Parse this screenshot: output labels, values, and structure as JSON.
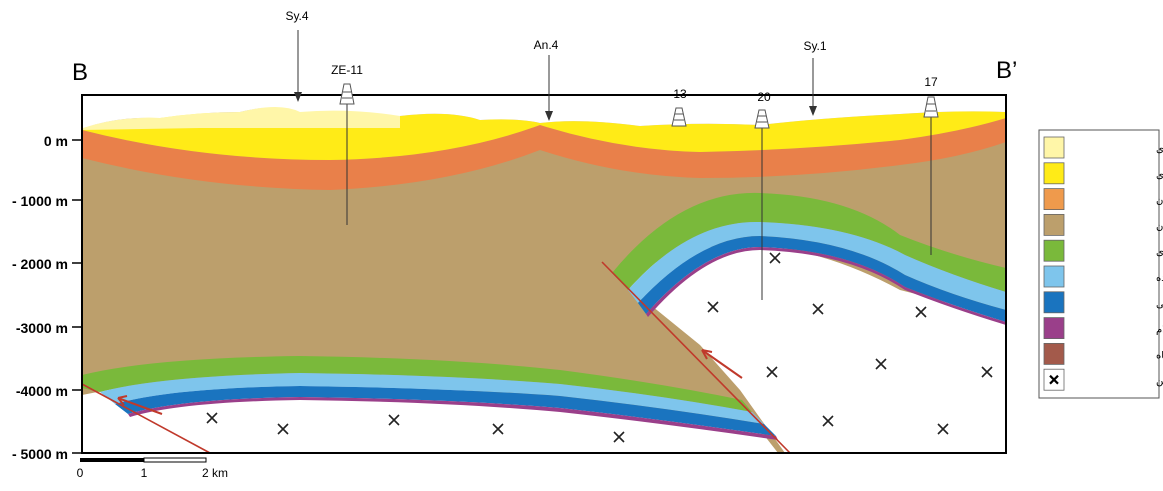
{
  "section": {
    "end_left": "B",
    "end_right": "B’",
    "depth_labels": [
      "0 m",
      "- 1000 m",
      "- 2000 m",
      "-3000 m",
      "-4000 m",
      "- 5000 m"
    ],
    "scale": {
      "ticks": [
        "0",
        "1",
        "2 km"
      ]
    }
  },
  "markers": [
    {
      "label": "Sy.4",
      "kind": "arrow"
    },
    {
      "label": "ZE-11",
      "kind": "well"
    },
    {
      "label": "An.4",
      "kind": "arrow"
    },
    {
      "label": "13",
      "kind": "well"
    },
    {
      "label": "20",
      "kind": "well"
    },
    {
      "label": "Sy.1",
      "kind": "arrow"
    },
    {
      "label": "17",
      "kind": "well"
    }
  ],
  "legend": [
    {
      "label": "کنگلومرای بختیاری",
      "color": "#fff6a8"
    },
    {
      "label": "سازند آغاجاری",
      "color": "#ffeb17"
    },
    {
      "label": "سازند میشان",
      "color": "#ef9a4c"
    },
    {
      "label": "سازند گچساران",
      "color": "#bc9f6c"
    },
    {
      "label": "سازند آسماری",
      "color": "#7ab93b"
    },
    {
      "label": "سازند پابده",
      "color": "#7ec5ec"
    },
    {
      "label": "سازند گورپی",
      "color": "#1a74bf"
    },
    {
      "label": "سازند ایلام",
      "color": "#9a3f8a"
    },
    {
      "label": "سازند سورگاه",
      "color": "#a35a4b"
    },
    {
      "label": "رسوبات کرتاسه زیرین",
      "color": "#ffffff",
      "icon": "cross-icon"
    }
  ]
}
